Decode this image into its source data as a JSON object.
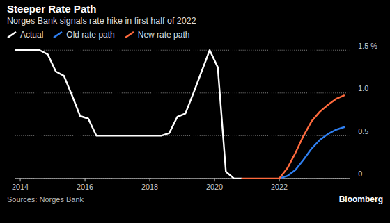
{
  "chart_data": {
    "type": "line",
    "title": "Steeper Rate Path",
    "subtitle": "Norges Bank signals rate hike in first half of 2022",
    "source": "Sources: Norges Bank",
    "brand": "Bloomberg",
    "legend": "top",
    "grid": true,
    "xlim": [
      2013.85,
      2024.2
    ],
    "xticks": [
      2014,
      2016,
      2018,
      2020,
      2022
    ],
    "ylim": [
      0,
      1.5
    ],
    "yticks": [
      0,
      0.5,
      {
        "value": 1,
        "label": "1.0"
      },
      {
        "value": 1.5,
        "label": "1.5 %"
      }
    ],
    "series": [
      {
        "name": "Actual",
        "color": "#ffffff",
        "x": [
          2013.85,
          2014.1,
          2014.35,
          2014.6,
          2014.85,
          2015.1,
          2015.35,
          2015.6,
          2015.85,
          2016.1,
          2016.35,
          2016.6,
          2016.85,
          2017.1,
          2017.35,
          2017.6,
          2017.85,
          2018.1,
          2018.35,
          2018.6,
          2018.85,
          2019.1,
          2019.35,
          2019.6,
          2019.85,
          2020.1,
          2020.35,
          2020.6,
          2020.85
        ],
        "values": [
          1.5,
          1.5,
          1.5,
          1.5,
          1.45,
          1.25,
          1.2,
          0.97,
          0.73,
          0.7,
          0.5,
          0.5,
          0.5,
          0.5,
          0.5,
          0.5,
          0.5,
          0.5,
          0.5,
          0.53,
          0.72,
          0.76,
          1.0,
          1.25,
          1.5,
          1.3,
          0.08,
          0,
          0
        ]
      },
      {
        "name": "Old rate path",
        "color": "#2f7ff0",
        "x": [
          2022.0,
          2022.25,
          2022.5,
          2022.75,
          2023.0,
          2023.25,
          2023.5,
          2023.75,
          2024.0
        ],
        "values": [
          0,
          0.03,
          0.1,
          0.22,
          0.35,
          0.45,
          0.52,
          0.57,
          0.6
        ]
      },
      {
        "name": "New rate path",
        "color": "#ff6a3d",
        "x": [
          2020.85,
          2021.1,
          2021.35,
          2021.6,
          2021.85,
          2022.0,
          2022.25,
          2022.5,
          2022.75,
          2023.0,
          2023.25,
          2023.5,
          2023.75,
          2024.0
        ],
        "values": [
          0,
          0,
          0,
          0,
          0,
          0,
          0.12,
          0.3,
          0.5,
          0.67,
          0.78,
          0.86,
          0.93,
          0.97
        ]
      }
    ]
  }
}
